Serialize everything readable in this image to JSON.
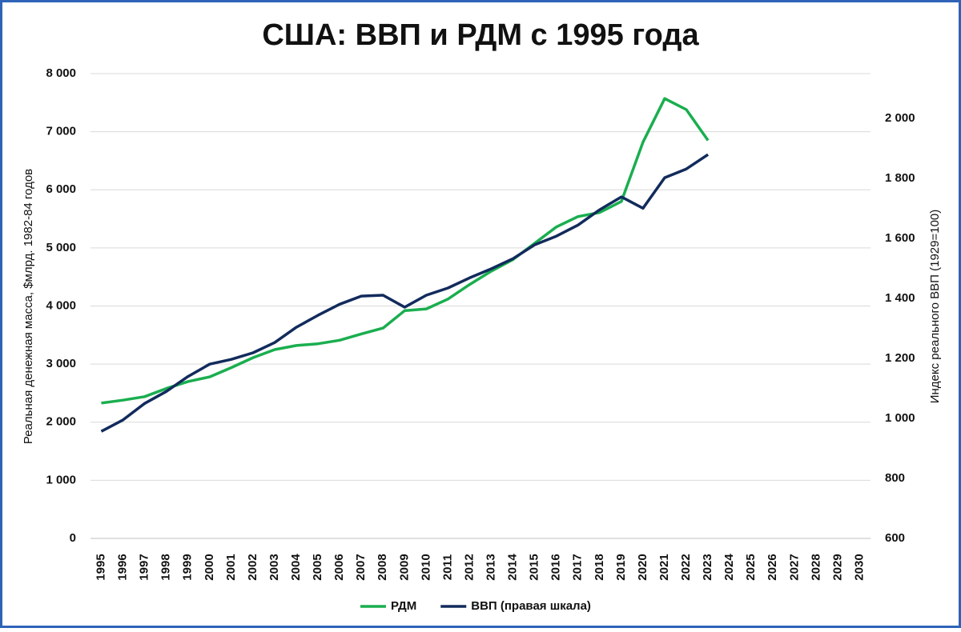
{
  "chart_data": {
    "type": "line",
    "title": "США: ВВП и РДМ с 1995 года",
    "y_label": "Реальная денежная масса, $млрд. 1982-84 годов",
    "y2_label": "Индекс реального ВВП (1929=100)",
    "categories": [
      "1995",
      "1996",
      "1997",
      "1998",
      "1999",
      "2000",
      "2001",
      "2002",
      "2003",
      "2004",
      "2005",
      "2006",
      "2007",
      "2008",
      "2009",
      "2010",
      "2011",
      "2012",
      "2013",
      "2014",
      "2015",
      "2016",
      "2017",
      "2018",
      "2019",
      "2020",
      "2021",
      "2022",
      "2023",
      "2024",
      "2025",
      "2026",
      "2027",
      "2028",
      "2029",
      "2030"
    ],
    "series": [
      {
        "name": "РДМ",
        "color": "#1aae4f",
        "axis": "y",
        "values": [
          2330,
          2380,
          2440,
          2580,
          2700,
          2780,
          2940,
          3110,
          3250,
          3320,
          3350,
          3410,
          3520,
          3620,
          3920,
          3950,
          4120,
          4370,
          4600,
          4800,
          5080,
          5360,
          5540,
          5610,
          5800,
          6820,
          7570,
          7380,
          6850,
          null,
          null,
          null,
          null,
          null,
          null,
          null
        ]
      },
      {
        "name": "ВВП (правая шкала)",
        "color": "#122b5c",
        "axis": "y2",
        "values": [
          957,
          995,
          1050,
          1090,
          1140,
          1181,
          1197,
          1219,
          1253,
          1304,
          1344,
          1381,
          1408,
          1411,
          1371,
          1411,
          1435,
          1469,
          1499,
          1533,
          1579,
          1608,
          1645,
          1696,
          1739,
          1701,
          1803,
          1832,
          1880,
          null,
          null,
          null,
          null,
          null,
          null,
          null
        ]
      }
    ],
    "ylim": [
      0,
      8000
    ],
    "yticks": [
      0,
      {
        "value": 1000,
        "label": "1 000"
      },
      {
        "value": 2000,
        "label": "2 000"
      },
      {
        "value": 3000,
        "label": "3 000"
      },
      {
        "value": 4000,
        "label": "4 000"
      },
      {
        "value": 5000,
        "label": "5 000"
      },
      {
        "value": 6000,
        "label": "6 000"
      },
      {
        "value": 7000,
        "label": "7 000"
      },
      {
        "value": 8000,
        "label": "8 000"
      }
    ],
    "y2lim": [
      600,
      2150
    ],
    "y2ticks": [
      600,
      800,
      {
        "value": 1000,
        "label": "1 000"
      },
      {
        "value": 1200,
        "label": "1 200"
      },
      {
        "value": 1400,
        "label": "1 400"
      },
      {
        "value": 1600,
        "label": "1 600"
      },
      {
        "value": 1800,
        "label": "1 800"
      },
      {
        "value": 2000,
        "label": "2 000"
      }
    ],
    "grid": true,
    "legend": "bottom"
  }
}
